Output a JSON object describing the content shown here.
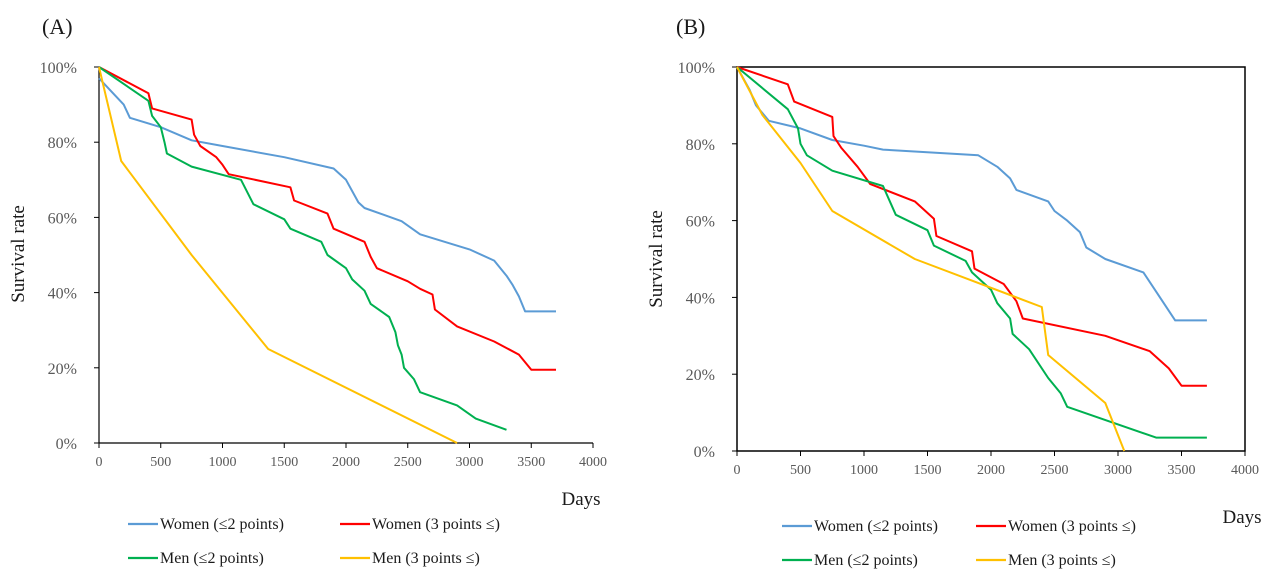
{
  "chart_data": [
    {
      "panel_label": "(A)",
      "type": "line",
      "xlabel": "Days",
      "ylabel": "Survival rate",
      "xlim": [
        0,
        4000
      ],
      "ylim": [
        0,
        100
      ],
      "x_ticks": [
        "0",
        "500",
        "1000",
        "1500",
        "2000",
        "2500",
        "3000",
        "3500",
        "4000"
      ],
      "y_ticks": [
        "0%",
        "20%",
        "40%",
        "60%",
        "80%",
        "100%"
      ],
      "legend": "bottom",
      "grid": false,
      "series": [
        {
          "name": "Women (≤2 points)",
          "color": "#5b9bd5",
          "points": [
            [
              0,
              97
            ],
            [
              200,
              90
            ],
            [
              250,
              86.5
            ],
            [
              500,
              84
            ],
            [
              750,
              80.5
            ],
            [
              1000,
              79
            ],
            [
              1500,
              76
            ],
            [
              1900,
              73
            ],
            [
              2000,
              70
            ],
            [
              2050,
              67
            ],
            [
              2100,
              64
            ],
            [
              2150,
              62.5
            ],
            [
              2450,
              59
            ],
            [
              2600,
              55.5
            ],
            [
              3000,
              51.5
            ],
            [
              3200,
              48.5
            ],
            [
              3300,
              44.5
            ],
            [
              3350,
              42
            ],
            [
              3400,
              39
            ],
            [
              3450,
              35
            ],
            [
              3700,
              35
            ]
          ]
        },
        {
          "name": "Women (3 points ≤)",
          "color": "#ff0000",
          "points": [
            [
              0,
              100
            ],
            [
              400,
              93
            ],
            [
              430,
              89
            ],
            [
              750,
              86
            ],
            [
              770,
              82
            ],
            [
              820,
              79
            ],
            [
              950,
              76
            ],
            [
              1000,
              74
            ],
            [
              1050,
              71.5
            ],
            [
              1550,
              68
            ],
            [
              1580,
              64.5
            ],
            [
              1850,
              61
            ],
            [
              1900,
              57
            ],
            [
              2150,
              53.5
            ],
            [
              2200,
              49.5
            ],
            [
              2250,
              46.5
            ],
            [
              2500,
              43
            ],
            [
              2600,
              41
            ],
            [
              2700,
              39.5
            ],
            [
              2720,
              35.5
            ],
            [
              2900,
              31
            ],
            [
              3200,
              27
            ],
            [
              3400,
              23.5
            ],
            [
              3500,
              19.5
            ],
            [
              3700,
              19.5
            ]
          ]
        },
        {
          "name": "Men (≤2 points)",
          "color": "#00b050",
          "points": [
            [
              0,
              100
            ],
            [
              400,
              91
            ],
            [
              430,
              87
            ],
            [
              500,
              84
            ],
            [
              530,
              80
            ],
            [
              550,
              77
            ],
            [
              750,
              73.5
            ],
            [
              1150,
              70
            ],
            [
              1250,
              63.5
            ],
            [
              1500,
              59.5
            ],
            [
              1550,
              57
            ],
            [
              1800,
              53.5
            ],
            [
              1850,
              50
            ],
            [
              2000,
              46.5
            ],
            [
              2050,
              43.5
            ],
            [
              2150,
              40.5
            ],
            [
              2200,
              37
            ],
            [
              2350,
              33.5
            ],
            [
              2400,
              29.5
            ],
            [
              2420,
              26
            ],
            [
              2450,
              23.5
            ],
            [
              2470,
              20
            ],
            [
              2550,
              17
            ],
            [
              2600,
              13.5
            ],
            [
              2900,
              10
            ],
            [
              3050,
              6.5
            ],
            [
              3300,
              3.5
            ]
          ]
        },
        {
          "name": "Men (3 points ≤)",
          "color": "#ffc000",
          "points": [
            [
              0,
              100
            ],
            [
              180,
              75
            ],
            [
              750,
              50
            ],
            [
              1370,
              25
            ],
            [
              2900,
              0
            ]
          ]
        }
      ]
    },
    {
      "panel_label": "(B)",
      "type": "line",
      "xlabel": "Days",
      "ylabel": "Survival rate",
      "xlim": [
        0,
        4000
      ],
      "ylim": [
        0,
        100
      ],
      "x_ticks": [
        "0",
        "500",
        "1000",
        "1500",
        "2000",
        "2500",
        "3000",
        "3500",
        "4000"
      ],
      "y_ticks": [
        "0%",
        "20%",
        "40%",
        "60%",
        "80%",
        "100%"
      ],
      "legend": "bottom",
      "grid": false,
      "series": [
        {
          "name": "Women (≤2 points)",
          "color": "#5b9bd5",
          "points": [
            [
              0,
              100
            ],
            [
              100,
              94
            ],
            [
              150,
              90
            ],
            [
              250,
              86
            ],
            [
              500,
              84
            ],
            [
              750,
              81
            ],
            [
              1000,
              79.5
            ],
            [
              1150,
              78.5
            ],
            [
              1900,
              77
            ],
            [
              2050,
              74
            ],
            [
              2150,
              71
            ],
            [
              2200,
              68
            ],
            [
              2450,
              65
            ],
            [
              2500,
              62.5
            ],
            [
              2600,
              60
            ],
            [
              2700,
              57
            ],
            [
              2750,
              53
            ],
            [
              2900,
              50
            ],
            [
              3200,
              46.5
            ],
            [
              3300,
              41.5
            ],
            [
              3450,
              34
            ],
            [
              3700,
              34
            ]
          ]
        },
        {
          "name": "Women (3 points ≤)",
          "color": "#ff0000",
          "points": [
            [
              0,
              100
            ],
            [
              400,
              95.5
            ],
            [
              450,
              91
            ],
            [
              750,
              87
            ],
            [
              760,
              82
            ],
            [
              820,
              79
            ],
            [
              950,
              74
            ],
            [
              1050,
              69.5
            ],
            [
              1400,
              65
            ],
            [
              1550,
              60.5
            ],
            [
              1570,
              56
            ],
            [
              1850,
              52
            ],
            [
              1870,
              47.5
            ],
            [
              2100,
              43.5
            ],
            [
              2200,
              39
            ],
            [
              2250,
              34.5
            ],
            [
              2900,
              30
            ],
            [
              3250,
              26
            ],
            [
              3400,
              21.5
            ],
            [
              3500,
              17
            ],
            [
              3700,
              17
            ]
          ]
        },
        {
          "name": "Men (≤2 points)",
          "color": "#00b050",
          "points": [
            [
              0,
              100
            ],
            [
              400,
              89
            ],
            [
              480,
              84
            ],
            [
              500,
              80
            ],
            [
              550,
              77
            ],
            [
              750,
              73
            ],
            [
              1150,
              69
            ],
            [
              1250,
              61.5
            ],
            [
              1500,
              57.5
            ],
            [
              1550,
              53.5
            ],
            [
              1800,
              49.5
            ],
            [
              1850,
              46.5
            ],
            [
              2000,
              42
            ],
            [
              2050,
              38.5
            ],
            [
              2150,
              34.5
            ],
            [
              2170,
              30.5
            ],
            [
              2300,
              26.5
            ],
            [
              2450,
              19
            ],
            [
              2550,
              15
            ],
            [
              2600,
              11.5
            ],
            [
              3300,
              3.5
            ],
            [
              3700,
              3.5
            ]
          ]
        },
        {
          "name": "Men (3 points ≤)",
          "color": "#ffc000",
          "points": [
            [
              0,
              100
            ],
            [
              200,
              87.5
            ],
            [
              500,
              75
            ],
            [
              750,
              62.5
            ],
            [
              1400,
              50
            ],
            [
              2400,
              37.5
            ],
            [
              2450,
              25
            ],
            [
              2900,
              12.5
            ],
            [
              3050,
              0
            ]
          ]
        }
      ]
    }
  ]
}
